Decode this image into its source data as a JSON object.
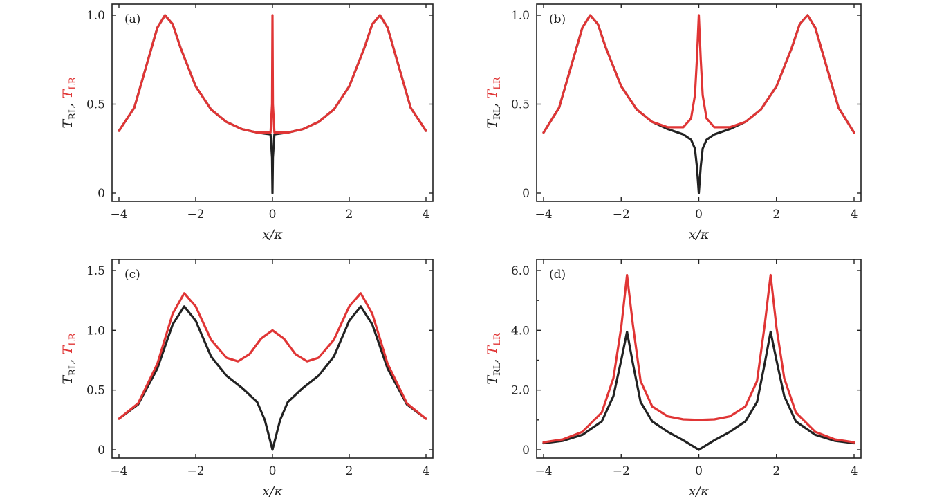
{
  "colors": {
    "trl": "#222222",
    "tlr": "#e03535"
  },
  "labels": {
    "xlabel": "x/κ",
    "ylabel_trl_main": "T",
    "ylabel_trl_sub": "RL",
    "ylabel_sep": ",",
    "ylabel_tlr_main": "T",
    "ylabel_tlr_sub": "LR"
  },
  "chart_data": [
    {
      "type": "line",
      "panel": "(a)",
      "xlim": [
        -4,
        4
      ],
      "ylim": [
        0,
        1.0
      ],
      "xticks": [
        -4,
        -2,
        0,
        2,
        4
      ],
      "xtick_labels": [
        "−4",
        "−2",
        "0",
        "2",
        "4"
      ],
      "yticks": [
        0,
        0.5,
        1.0
      ],
      "ytick_labels": [
        "0",
        "0.5",
        "1.0"
      ],
      "series": [
        {
          "key": "trl",
          "x": [
            -4,
            -3.6,
            -3.2,
            -3.0,
            -2.8,
            -2.6,
            -2.4,
            -2.0,
            -1.6,
            -1.2,
            -0.8,
            -0.4,
            -0.05,
            -0.01,
            0,
            0.01,
            0.05,
            0.4,
            0.8,
            1.2,
            1.6,
            2.0,
            2.4,
            2.6,
            2.8,
            3.0,
            3.2,
            3.6,
            4
          ],
          "y": [
            0.35,
            0.48,
            0.78,
            0.93,
            1.0,
            0.95,
            0.82,
            0.6,
            0.47,
            0.4,
            0.36,
            0.34,
            0.33,
            0.2,
            0.0,
            0.2,
            0.33,
            0.34,
            0.36,
            0.4,
            0.47,
            0.6,
            0.82,
            0.95,
            1.0,
            0.93,
            0.78,
            0.48,
            0.35
          ]
        },
        {
          "key": "tlr",
          "x": [
            -4,
            -3.6,
            -3.2,
            -3.0,
            -2.8,
            -2.6,
            -2.4,
            -2.0,
            -1.6,
            -1.2,
            -0.8,
            -0.4,
            -0.05,
            -0.01,
            0,
            0.01,
            0.05,
            0.4,
            0.8,
            1.2,
            1.6,
            2.0,
            2.4,
            2.6,
            2.8,
            3.0,
            3.2,
            3.6,
            4
          ],
          "y": [
            0.35,
            0.48,
            0.78,
            0.93,
            1.0,
            0.95,
            0.82,
            0.6,
            0.47,
            0.4,
            0.36,
            0.34,
            0.34,
            0.5,
            1.0,
            0.5,
            0.34,
            0.34,
            0.36,
            0.4,
            0.47,
            0.6,
            0.82,
            0.95,
            1.0,
            0.93,
            0.78,
            0.48,
            0.35
          ]
        }
      ]
    },
    {
      "type": "line",
      "panel": "(b)",
      "xlim": [
        -4,
        4
      ],
      "ylim": [
        0,
        1.0
      ],
      "xticks": [
        -4,
        -2,
        0,
        2,
        4
      ],
      "xtick_labels": [
        "−4",
        "−2",
        "0",
        "2",
        "4"
      ],
      "yticks": [
        0,
        0.5,
        1.0
      ],
      "ytick_labels": [
        "0",
        "0.5",
        "1.0"
      ],
      "series": [
        {
          "key": "trl",
          "x": [
            -4,
            -3.6,
            -3.2,
            -3.0,
            -2.8,
            -2.6,
            -2.4,
            -2.0,
            -1.6,
            -1.2,
            -0.8,
            -0.4,
            -0.2,
            -0.1,
            -0.05,
            0,
            0.05,
            0.1,
            0.2,
            0.4,
            0.8,
            1.2,
            1.6,
            2.0,
            2.4,
            2.6,
            2.8,
            3.0,
            3.2,
            3.6,
            4
          ],
          "y": [
            0.34,
            0.48,
            0.78,
            0.93,
            1.0,
            0.95,
            0.82,
            0.6,
            0.47,
            0.4,
            0.36,
            0.33,
            0.3,
            0.25,
            0.15,
            0.0,
            0.15,
            0.25,
            0.3,
            0.33,
            0.36,
            0.4,
            0.47,
            0.6,
            0.82,
            0.95,
            1.0,
            0.93,
            0.78,
            0.48,
            0.34
          ]
        },
        {
          "key": "tlr",
          "x": [
            -4,
            -3.6,
            -3.2,
            -3.0,
            -2.8,
            -2.6,
            -2.4,
            -2.0,
            -1.6,
            -1.2,
            -0.8,
            -0.4,
            -0.2,
            -0.1,
            -0.05,
            0,
            0.05,
            0.1,
            0.2,
            0.4,
            0.8,
            1.2,
            1.6,
            2.0,
            2.4,
            2.6,
            2.8,
            3.0,
            3.2,
            3.6,
            4
          ],
          "y": [
            0.34,
            0.48,
            0.78,
            0.93,
            1.0,
            0.95,
            0.82,
            0.6,
            0.47,
            0.4,
            0.37,
            0.37,
            0.42,
            0.55,
            0.75,
            1.0,
            0.75,
            0.55,
            0.42,
            0.37,
            0.37,
            0.4,
            0.47,
            0.6,
            0.82,
            0.95,
            1.0,
            0.93,
            0.78,
            0.48,
            0.34
          ]
        }
      ]
    },
    {
      "type": "line",
      "panel": "(c)",
      "xlim": [
        -4,
        4
      ],
      "ylim": [
        0,
        1.5
      ],
      "xticks": [
        -4,
        -2,
        0,
        2,
        4
      ],
      "xtick_labels": [
        "−4",
        "−2",
        "0",
        "2",
        "4"
      ],
      "yticks": [
        0,
        0.5,
        1.0,
        1.5
      ],
      "ytick_labels": [
        "0",
        "0.5",
        "1.0",
        "1.5"
      ],
      "series": [
        {
          "key": "trl",
          "x": [
            -4,
            -3.5,
            -3.0,
            -2.6,
            -2.3,
            -2.0,
            -1.6,
            -1.2,
            -0.8,
            -0.4,
            -0.2,
            0,
            0.2,
            0.4,
            0.8,
            1.2,
            1.6,
            2.0,
            2.3,
            2.6,
            3.0,
            3.5,
            4
          ],
          "y": [
            0.26,
            0.38,
            0.68,
            1.05,
            1.2,
            1.08,
            0.78,
            0.62,
            0.52,
            0.4,
            0.25,
            0.0,
            0.25,
            0.4,
            0.52,
            0.62,
            0.78,
            1.08,
            1.2,
            1.05,
            0.68,
            0.38,
            0.26
          ]
        },
        {
          "key": "tlr",
          "x": [
            -4,
            -3.5,
            -3.0,
            -2.6,
            -2.3,
            -2.0,
            -1.6,
            -1.2,
            -0.9,
            -0.6,
            -0.3,
            0,
            0.3,
            0.6,
            0.9,
            1.2,
            1.6,
            2.0,
            2.3,
            2.6,
            3.0,
            3.5,
            4
          ],
          "y": [
            0.26,
            0.39,
            0.72,
            1.14,
            1.31,
            1.2,
            0.92,
            0.77,
            0.74,
            0.8,
            0.93,
            1.0,
            0.93,
            0.8,
            0.74,
            0.77,
            0.92,
            1.2,
            1.31,
            1.14,
            0.72,
            0.39,
            0.26
          ]
        }
      ]
    },
    {
      "type": "line",
      "panel": "(d)",
      "xlim": [
        -4,
        4
      ],
      "ylim": [
        0,
        6.0
      ],
      "xticks": [
        -4,
        -2,
        0,
        2,
        4
      ],
      "xtick_labels": [
        "−4",
        "−2",
        "0",
        "2",
        "4"
      ],
      "yticks": [
        0,
        2.0,
        4.0,
        6.0
      ],
      "ytick_labels": [
        "0",
        "2.0",
        "4.0",
        "6.0"
      ],
      "series": [
        {
          "key": "trl",
          "x": [
            -4,
            -3.5,
            -3.0,
            -2.5,
            -2.2,
            -2.0,
            -1.85,
            -1.7,
            -1.5,
            -1.2,
            -0.8,
            -0.4,
            0,
            0.4,
            0.8,
            1.2,
            1.5,
            1.7,
            1.85,
            2.0,
            2.2,
            2.5,
            3.0,
            3.5,
            4
          ],
          "y": [
            0.22,
            0.3,
            0.5,
            0.95,
            1.8,
            3.0,
            3.95,
            2.9,
            1.6,
            0.95,
            0.6,
            0.32,
            0.0,
            0.32,
            0.6,
            0.95,
            1.6,
            2.9,
            3.95,
            3.0,
            1.8,
            0.95,
            0.5,
            0.3,
            0.22
          ]
        },
        {
          "key": "tlr",
          "x": [
            -4,
            -3.5,
            -3.0,
            -2.5,
            -2.2,
            -2.0,
            -1.85,
            -1.7,
            -1.5,
            -1.2,
            -0.8,
            -0.4,
            0,
            0.4,
            0.8,
            1.2,
            1.5,
            1.7,
            1.85,
            2.0,
            2.2,
            2.5,
            3.0,
            3.5,
            4
          ],
          "y": [
            0.25,
            0.35,
            0.6,
            1.25,
            2.4,
            4.1,
            5.85,
            4.2,
            2.3,
            1.45,
            1.12,
            1.02,
            1.0,
            1.02,
            1.12,
            1.45,
            2.3,
            4.2,
            5.85,
            4.1,
            2.4,
            1.25,
            0.6,
            0.35,
            0.25
          ]
        }
      ]
    }
  ]
}
